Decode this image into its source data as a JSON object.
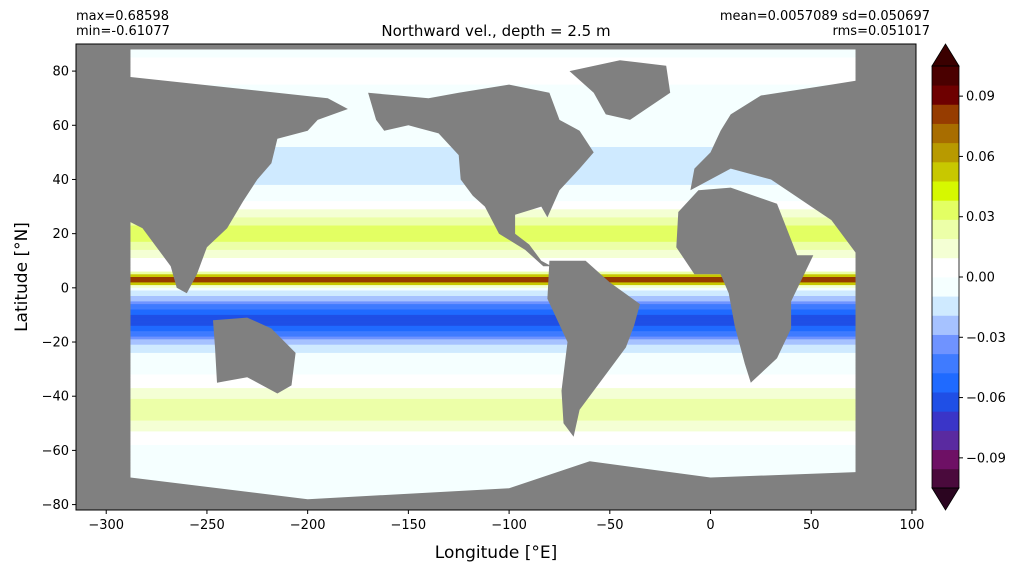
{
  "chart_data": {
    "type": "heatmap",
    "title": "Northward vel., depth = 2.5 m",
    "stats": {
      "max": "max=0.68598",
      "min": "min=-0.61077",
      "mean_sd": "mean=0.0057089 sd=0.050697",
      "rms": "rms=0.051017"
    },
    "xlabel": "Longitude [°E]",
    "ylabel": "Latitude [°N]",
    "xlim": [
      -315,
      102
    ],
    "ylim": [
      -82,
      90
    ],
    "xticks": [
      -300,
      -250,
      -200,
      -150,
      -100,
      -50,
      0,
      50,
      100
    ],
    "xtick_labels": [
      "−300",
      "−250",
      "−200",
      "−150",
      "−100",
      "−50",
      "0",
      "50",
      "100"
    ],
    "yticks": [
      -80,
      -60,
      -40,
      -20,
      0,
      20,
      40,
      60,
      80
    ],
    "ytick_labels": [
      "−80",
      "−60",
      "−40",
      "−20",
      "0",
      "20",
      "40",
      "60",
      "80"
    ],
    "land_color": "#808080",
    "colorbar": {
      "levels": [
        -0.105,
        -0.095,
        -0.085,
        -0.075,
        -0.065,
        -0.055,
        -0.045,
        -0.035,
        -0.025,
        -0.015,
        -0.005,
        0.005,
        0.015,
        0.025,
        0.035,
        0.045,
        0.055,
        0.065,
        0.075,
        0.085,
        0.095,
        0.105
      ],
      "colors": [
        "#4a0a3c",
        "#6e1065",
        "#5a2aa0",
        "#3a35c8",
        "#1f4fe6",
        "#1f6aff",
        "#3f7bff",
        "#6f93ff",
        "#a6c2ff",
        "#cfeaff",
        "#f5ffff",
        "#ffffff",
        "#f4ffd4",
        "#ecffa8",
        "#e3ff63",
        "#d6f800",
        "#c8c800",
        "#b89a00",
        "#a86d00",
        "#963c00",
        "#6e0000",
        "#4a0000"
      ],
      "under_color": "#2b0520",
      "over_color": "#3a0000",
      "ticks": [
        -0.09,
        -0.06,
        -0.03,
        0.0,
        0.03,
        0.06,
        0.09
      ],
      "tick_labels": [
        "−0.09",
        "−0.06",
        "−0.03",
        "0.00",
        "0.03",
        "0.06",
        "0.09"
      ],
      "extend": "both"
    },
    "field_description_values": {
      "equatorial_north_jet_peak": 0.1,
      "equatorial_south_band_min": -0.06,
      "subtropical_north_band": 0.04,
      "subtropical_south_band": 0.03
    }
  }
}
